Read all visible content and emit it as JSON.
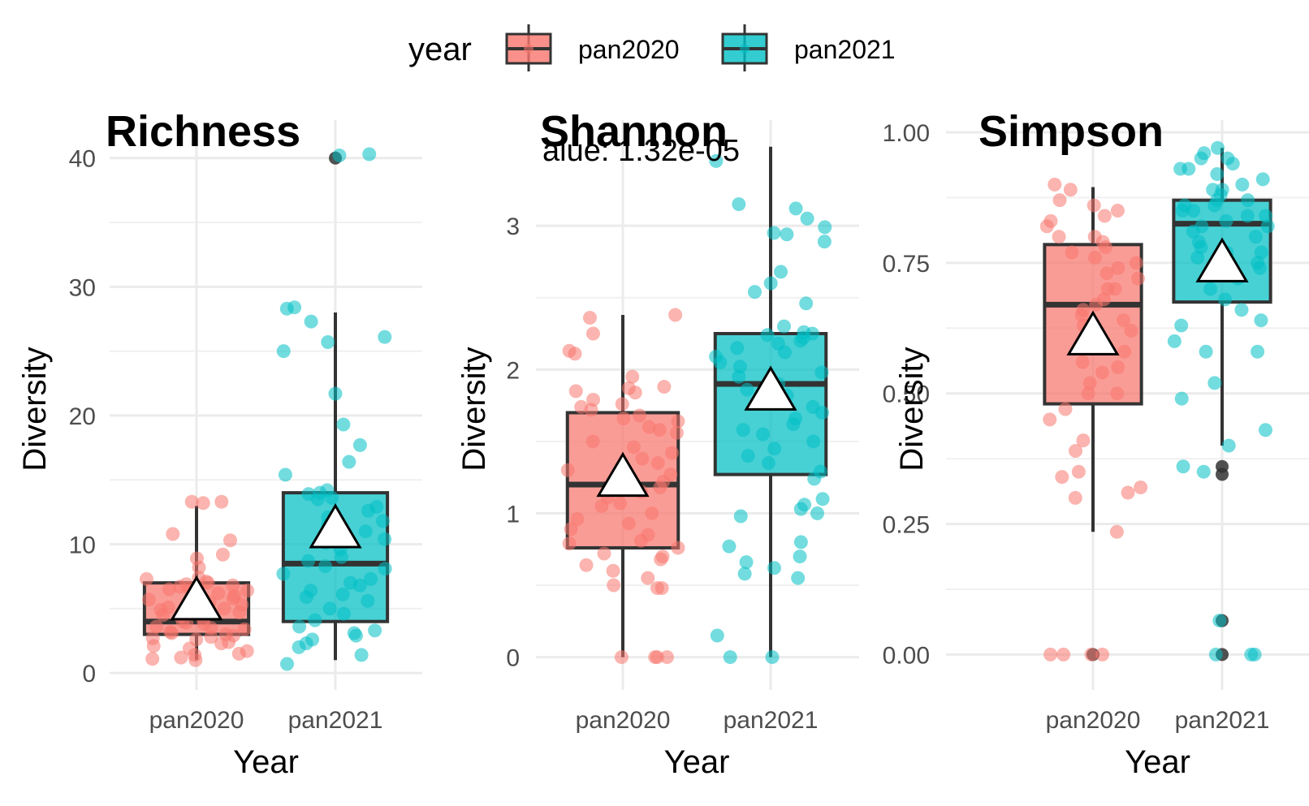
{
  "legend": {
    "title": "year",
    "items": [
      {
        "label": "pan2020",
        "color": "#F8766D"
      },
      {
        "label": "pan2021",
        "color": "#00BFC4"
      }
    ]
  },
  "chart_data": [
    {
      "type": "box",
      "title": "Richness",
      "xlabel": "Year",
      "ylabel": "Diversity",
      "categories": [
        "pan2020",
        "pan2021"
      ],
      "ylim": [
        -1,
        42
      ],
      "yticks": [
        0,
        10,
        20,
        30,
        40
      ],
      "ytick_labels": [
        "0",
        "10",
        "20",
        "30",
        "40"
      ],
      "annotation": "",
      "boxes": [
        {
          "category": "pan2020",
          "q1": 3,
          "median": 4,
          "q3": 7,
          "whisker_low": 1,
          "whisker_high": 13,
          "mean": 5.6,
          "outliers": []
        },
        {
          "category": "pan2021",
          "q1": 4,
          "median": 8.5,
          "q3": 14,
          "whisker_low": 1,
          "whisker_high": 28,
          "mean": 11.2,
          "outliers": [
            40
          ]
        }
      ],
      "points": [
        {
          "category": "pan2020",
          "values": [
            13.3,
            13.2,
            13.3,
            10.8,
            10.3,
            9.2,
            8.9,
            8.2,
            7.4,
            7.3,
            7.1,
            7.0,
            6.9,
            6.8,
            6.7,
            6.6,
            6.5,
            6.4,
            6.2,
            6.0,
            5.8,
            5.7,
            5.5,
            5.3,
            5.1,
            5.0,
            4.9,
            4.7,
            4.5,
            4.4,
            4.2,
            4.0,
            3.9,
            3.8,
            3.6,
            3.5,
            3.4,
            3.2,
            3.1,
            3.0,
            2.9,
            2.8,
            2.7,
            2.6,
            2.4,
            2.3,
            2.1,
            1.9,
            1.7,
            1.5,
            1.4,
            1.2,
            1.0,
            1.1
          ]
        },
        {
          "category": "pan2021",
          "values": [
            40.3,
            40.2,
            28.3,
            28.4,
            27.3,
            26.1,
            25.7,
            25.0,
            21.7,
            19.3,
            17.7,
            16.4,
            15.4,
            14.2,
            14.0,
            13.9,
            13.6,
            13.5,
            12.9,
            12.6,
            12.1,
            11.8,
            11.5,
            11.0,
            10.9,
            10.4,
            10.1,
            9.6,
            9.0,
            8.7,
            8.3,
            8.1,
            7.7,
            7.3,
            7.0,
            6.8,
            6.4,
            6.1,
            5.9,
            5.6,
            5.0,
            4.6,
            4.1,
            3.6,
            3.3,
            3.1,
            2.9,
            2.6,
            2.3,
            2.0,
            1.4,
            0.7
          ]
        }
      ]
    },
    {
      "type": "box",
      "title": "Shannon",
      "xlabel": "Year",
      "ylabel": "Diversity",
      "categories": [
        "pan2020",
        "pan2021"
      ],
      "ylim": [
        -0.2,
        3.65
      ],
      "yticks": [
        0,
        1,
        2,
        3
      ],
      "ytick_labels": [
        "0",
        "1",
        "2",
        "3"
      ],
      "annotation": "alue: 1.32e-05",
      "boxes": [
        {
          "category": "pan2020",
          "q1": 0.76,
          "median": 1.2,
          "q3": 1.7,
          "whisker_low": 0,
          "whisker_high": 2.38,
          "mean": 1.25,
          "outliers": []
        },
        {
          "category": "pan2021",
          "q1": 1.27,
          "median": 1.9,
          "q3": 2.25,
          "whisker_low": 0,
          "whisker_high": 3.55,
          "mean": 1.85,
          "outliers": []
        }
      ],
      "points": [
        {
          "category": "pan2020",
          "values": [
            2.38,
            2.36,
            2.25,
            2.13,
            2.11,
            1.95,
            1.88,
            1.87,
            1.85,
            1.84,
            1.79,
            1.76,
            1.74,
            1.72,
            1.68,
            1.66,
            1.64,
            1.6,
            1.58,
            1.56,
            1.5,
            1.46,
            1.42,
            1.38,
            1.35,
            1.3,
            1.27,
            1.22,
            1.18,
            1.15,
            1.11,
            1.07,
            1.05,
            1.0,
            0.96,
            0.93,
            0.89,
            0.85,
            0.81,
            0.79,
            0.76,
            0.72,
            0.7,
            0.68,
            0.64,
            0.6,
            0.55,
            0.5,
            0.48,
            0.48,
            0,
            0,
            0,
            0
          ]
        },
        {
          "category": "pan2021",
          "values": [
            3.45,
            3.15,
            3.12,
            3.05,
            2.99,
            2.95,
            2.94,
            2.89,
            2.68,
            2.6,
            2.54,
            2.46,
            2.3,
            2.26,
            2.25,
            2.24,
            2.22,
            2.2,
            2.18,
            2.15,
            2.12,
            2.09,
            2.05,
            2.02,
            1.98,
            1.95,
            1.9,
            1.86,
            1.82,
            1.78,
            1.74,
            1.7,
            1.66,
            1.62,
            1.58,
            1.55,
            1.5,
            1.45,
            1.4,
            1.35,
            1.29,
            1.24,
            1.1,
            1.06,
            1.03,
            1.0,
            0.98,
            0.8,
            0.77,
            0.7,
            0.66,
            0.62,
            0.58,
            0.55,
            0.15,
            0,
            0
          ]
        }
      ]
    },
    {
      "type": "box",
      "title": "Simpson",
      "xlabel": "Year",
      "ylabel": "Diversity",
      "categories": [
        "pan2020",
        "pan2021"
      ],
      "ylim": [
        -0.06,
        1.0
      ],
      "yticks": [
        0,
        0.25,
        0.5,
        0.75,
        1.0
      ],
      "ytick_labels": [
        "0.00",
        "0.25",
        "0.50",
        "0.75",
        "1.00"
      ],
      "annotation": "",
      "boxes": [
        {
          "category": "pan2020",
          "q1": 0.48,
          "median": 0.67,
          "q3": 0.785,
          "whisker_low": 0.235,
          "whisker_high": 0.895,
          "mean": 0.61,
          "outliers": [
            0
          ]
        },
        {
          "category": "pan2021",
          "q1": 0.675,
          "median": 0.825,
          "q3": 0.87,
          "whisker_low": 0.4,
          "whisker_high": 0.97,
          "mean": 0.75,
          "outliers": [
            0.36,
            0.345,
            0.065,
            0
          ]
        }
      ],
      "points": [
        {
          "category": "pan2020",
          "values": [
            0.9,
            0.89,
            0.87,
            0.86,
            0.85,
            0.84,
            0.83,
            0.82,
            0.8,
            0.8,
            0.79,
            0.78,
            0.77,
            0.76,
            0.75,
            0.74,
            0.73,
            0.72,
            0.7,
            0.7,
            0.68,
            0.67,
            0.66,
            0.65,
            0.64,
            0.63,
            0.62,
            0.6,
            0.59,
            0.58,
            0.56,
            0.55,
            0.54,
            0.52,
            0.5,
            0.5,
            0.47,
            0.45,
            0.41,
            0.39,
            0.35,
            0.34,
            0.32,
            0.31,
            0.3,
            0.235,
            0,
            0,
            0,
            0
          ]
        },
        {
          "category": "pan2021",
          "values": [
            0.97,
            0.96,
            0.95,
            0.95,
            0.94,
            0.93,
            0.93,
            0.92,
            0.91,
            0.9,
            0.89,
            0.89,
            0.88,
            0.87,
            0.87,
            0.86,
            0.86,
            0.85,
            0.85,
            0.84,
            0.84,
            0.83,
            0.82,
            0.82,
            0.81,
            0.8,
            0.79,
            0.78,
            0.77,
            0.77,
            0.76,
            0.75,
            0.74,
            0.73,
            0.72,
            0.7,
            0.68,
            0.66,
            0.64,
            0.63,
            0.6,
            0.58,
            0.58,
            0.52,
            0.49,
            0.43,
            0.4,
            0.36,
            0.35,
            0.065,
            0,
            0,
            0
          ]
        }
      ]
    }
  ]
}
